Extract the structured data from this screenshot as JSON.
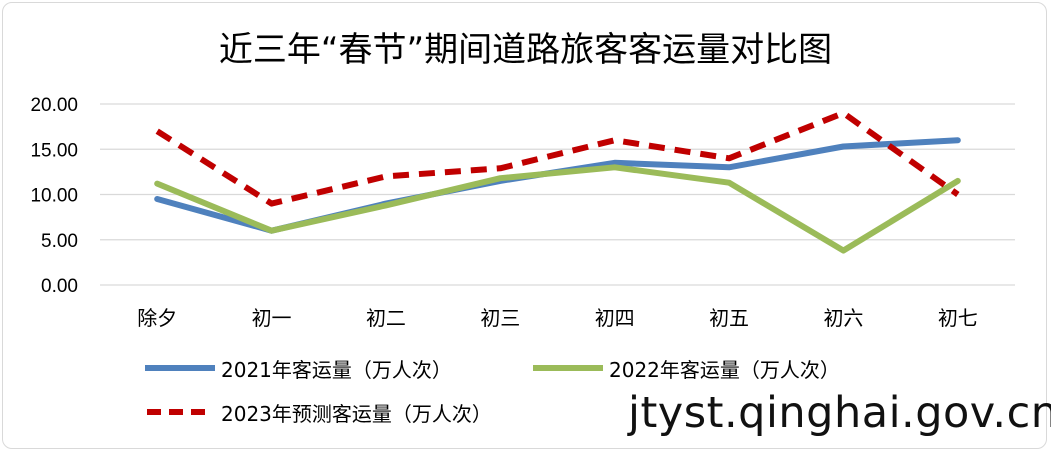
{
  "chart_data": {
    "type": "line",
    "title": "近三年“春节”期间道路旅客客运量对比图",
    "categories": [
      "除夕",
      "初一",
      "初二",
      "初三",
      "初四",
      "初五",
      "初六",
      "初七"
    ],
    "ylim": [
      0,
      20
    ],
    "yticks": [
      "0.00",
      "5.00",
      "10.00",
      "15.00",
      "20.00"
    ],
    "grid": true,
    "legend_position": "bottom",
    "series": [
      {
        "name": "2021年客运量（万人次）",
        "color": "#4f81bd",
        "style": "solid",
        "values": [
          9.5,
          6.0,
          9.0,
          11.5,
          13.5,
          13.0,
          15.3,
          16.0
        ]
      },
      {
        "name": "2022年客运量（万人次）",
        "color": "#9bbb59",
        "style": "solid",
        "values": [
          11.2,
          6.0,
          8.8,
          11.8,
          13.0,
          11.3,
          3.8,
          11.5
        ]
      },
      {
        "name": "2023年预测客运量（万人次）",
        "color": "#c00000",
        "style": "dashed",
        "values": [
          17.0,
          9.0,
          12.0,
          12.9,
          16.0,
          14.0,
          19.0,
          10.0
        ]
      }
    ]
  },
  "watermark": "jtyst.qinghai.gov.cn"
}
